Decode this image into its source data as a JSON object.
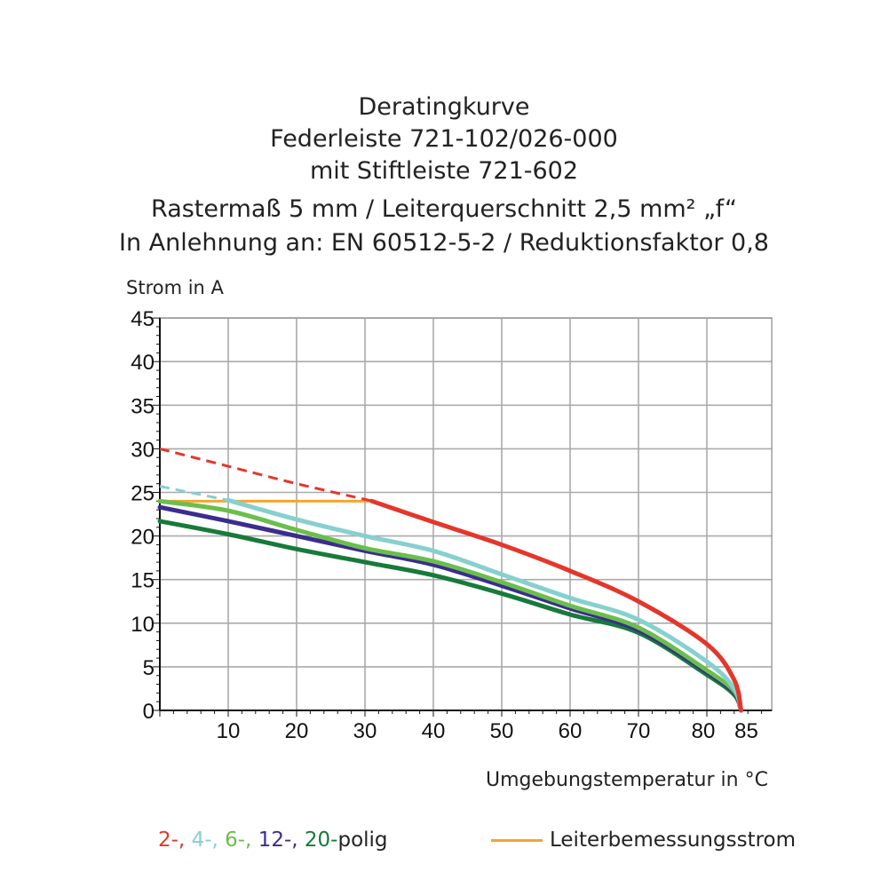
{
  "chart_data": {
    "type": "line",
    "title": [
      "Deratingkurve",
      "Federleiste 721-102/026-000",
      "mit Stiftleiste 721-602",
      "Rastermaß 5 mm / Leiterquerschnitt 2,5 mm² „f“",
      "In Anlehnung an: EN 60512-5-2 / Reduktionsfaktor 0,8"
    ],
    "ylabel": "Strom in A",
    "xlabel": "Umgebungstemperatur in  °C",
    "xlim": [
      0,
      89.5
    ],
    "ylim": [
      0,
      45
    ],
    "xticks": [
      10,
      20,
      30,
      40,
      50,
      60,
      70,
      80,
      85
    ],
    "yticks": [
      0,
      5,
      10,
      15,
      20,
      25,
      30,
      35,
      40,
      45
    ],
    "grid": true,
    "series": [
      {
        "name": "2-",
        "color": "#e5362b",
        "dashed_x": [
          0,
          31
        ],
        "x": [
          0,
          10,
          20,
          30,
          31,
          40,
          50,
          60,
          70,
          80,
          84,
          85
        ],
        "y": [
          30,
          28,
          26,
          24.2,
          24,
          21.6,
          19,
          16,
          12.5,
          7.6,
          3.5,
          0
        ]
      },
      {
        "name": "4-",
        "color": "#86d0cf",
        "dashed_x": [
          0,
          10
        ],
        "x": [
          0,
          10,
          20,
          30,
          40,
          50,
          60,
          70,
          80,
          84,
          85
        ],
        "y": [
          25.7,
          24.1,
          21.9,
          20,
          18.3,
          15.6,
          12.9,
          10.4,
          5.6,
          2.5,
          0
        ]
      },
      {
        "name": "6-",
        "color": "#6abf4b",
        "x": [
          0,
          10,
          20,
          30,
          40,
          50,
          60,
          70,
          80,
          84,
          85
        ],
        "y": [
          24,
          22.9,
          20.7,
          18.6,
          17.1,
          14.7,
          12,
          9.5,
          4.6,
          2.2,
          0
        ]
      },
      {
        "name": "12-",
        "color": "#3a2d8e",
        "x": [
          0,
          10,
          20,
          30,
          40,
          50,
          60,
          70,
          80,
          84,
          85
        ],
        "y": [
          23.3,
          21.7,
          20,
          18.3,
          16.7,
          14.3,
          11.7,
          9.2,
          4.4,
          2,
          0
        ]
      },
      {
        "name": "20-",
        "color": "#177a3a",
        "x": [
          0,
          10,
          20,
          30,
          40,
          50,
          60,
          70,
          80,
          84,
          85
        ],
        "y": [
          21.7,
          20.2,
          18.5,
          17,
          15.5,
          13.4,
          11,
          8.9,
          4.1,
          1.8,
          0
        ]
      }
    ],
    "reference": {
      "name": "Leiterbemessungsstrom",
      "color": "#f6a530",
      "x": [
        0,
        31
      ],
      "y": [
        24,
        24
      ]
    },
    "legend": {
      "series_suffix": "polig",
      "placement": "bottom"
    }
  }
}
